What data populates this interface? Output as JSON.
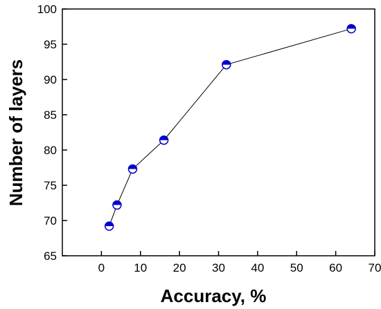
{
  "chart_data": {
    "type": "line",
    "title": "",
    "xlabel": "Accuracy, %",
    "ylabel": "Number of layers",
    "xlim": [
      -10,
      70
    ],
    "ylim": [
      65,
      100
    ],
    "x_ticks": [
      0,
      10,
      20,
      30,
      40,
      50,
      60,
      70
    ],
    "y_ticks": [
      65,
      70,
      75,
      80,
      85,
      90,
      95,
      100
    ],
    "grid": false,
    "legend": "none",
    "series": [
      {
        "x": [
          2,
          4,
          8,
          16,
          32,
          64
        ],
        "y": [
          69.2,
          72.2,
          77.3,
          81.4,
          92.1,
          97.2
        ],
        "marker": "half-filled-circle",
        "color": "#0000cc"
      }
    ]
  }
}
